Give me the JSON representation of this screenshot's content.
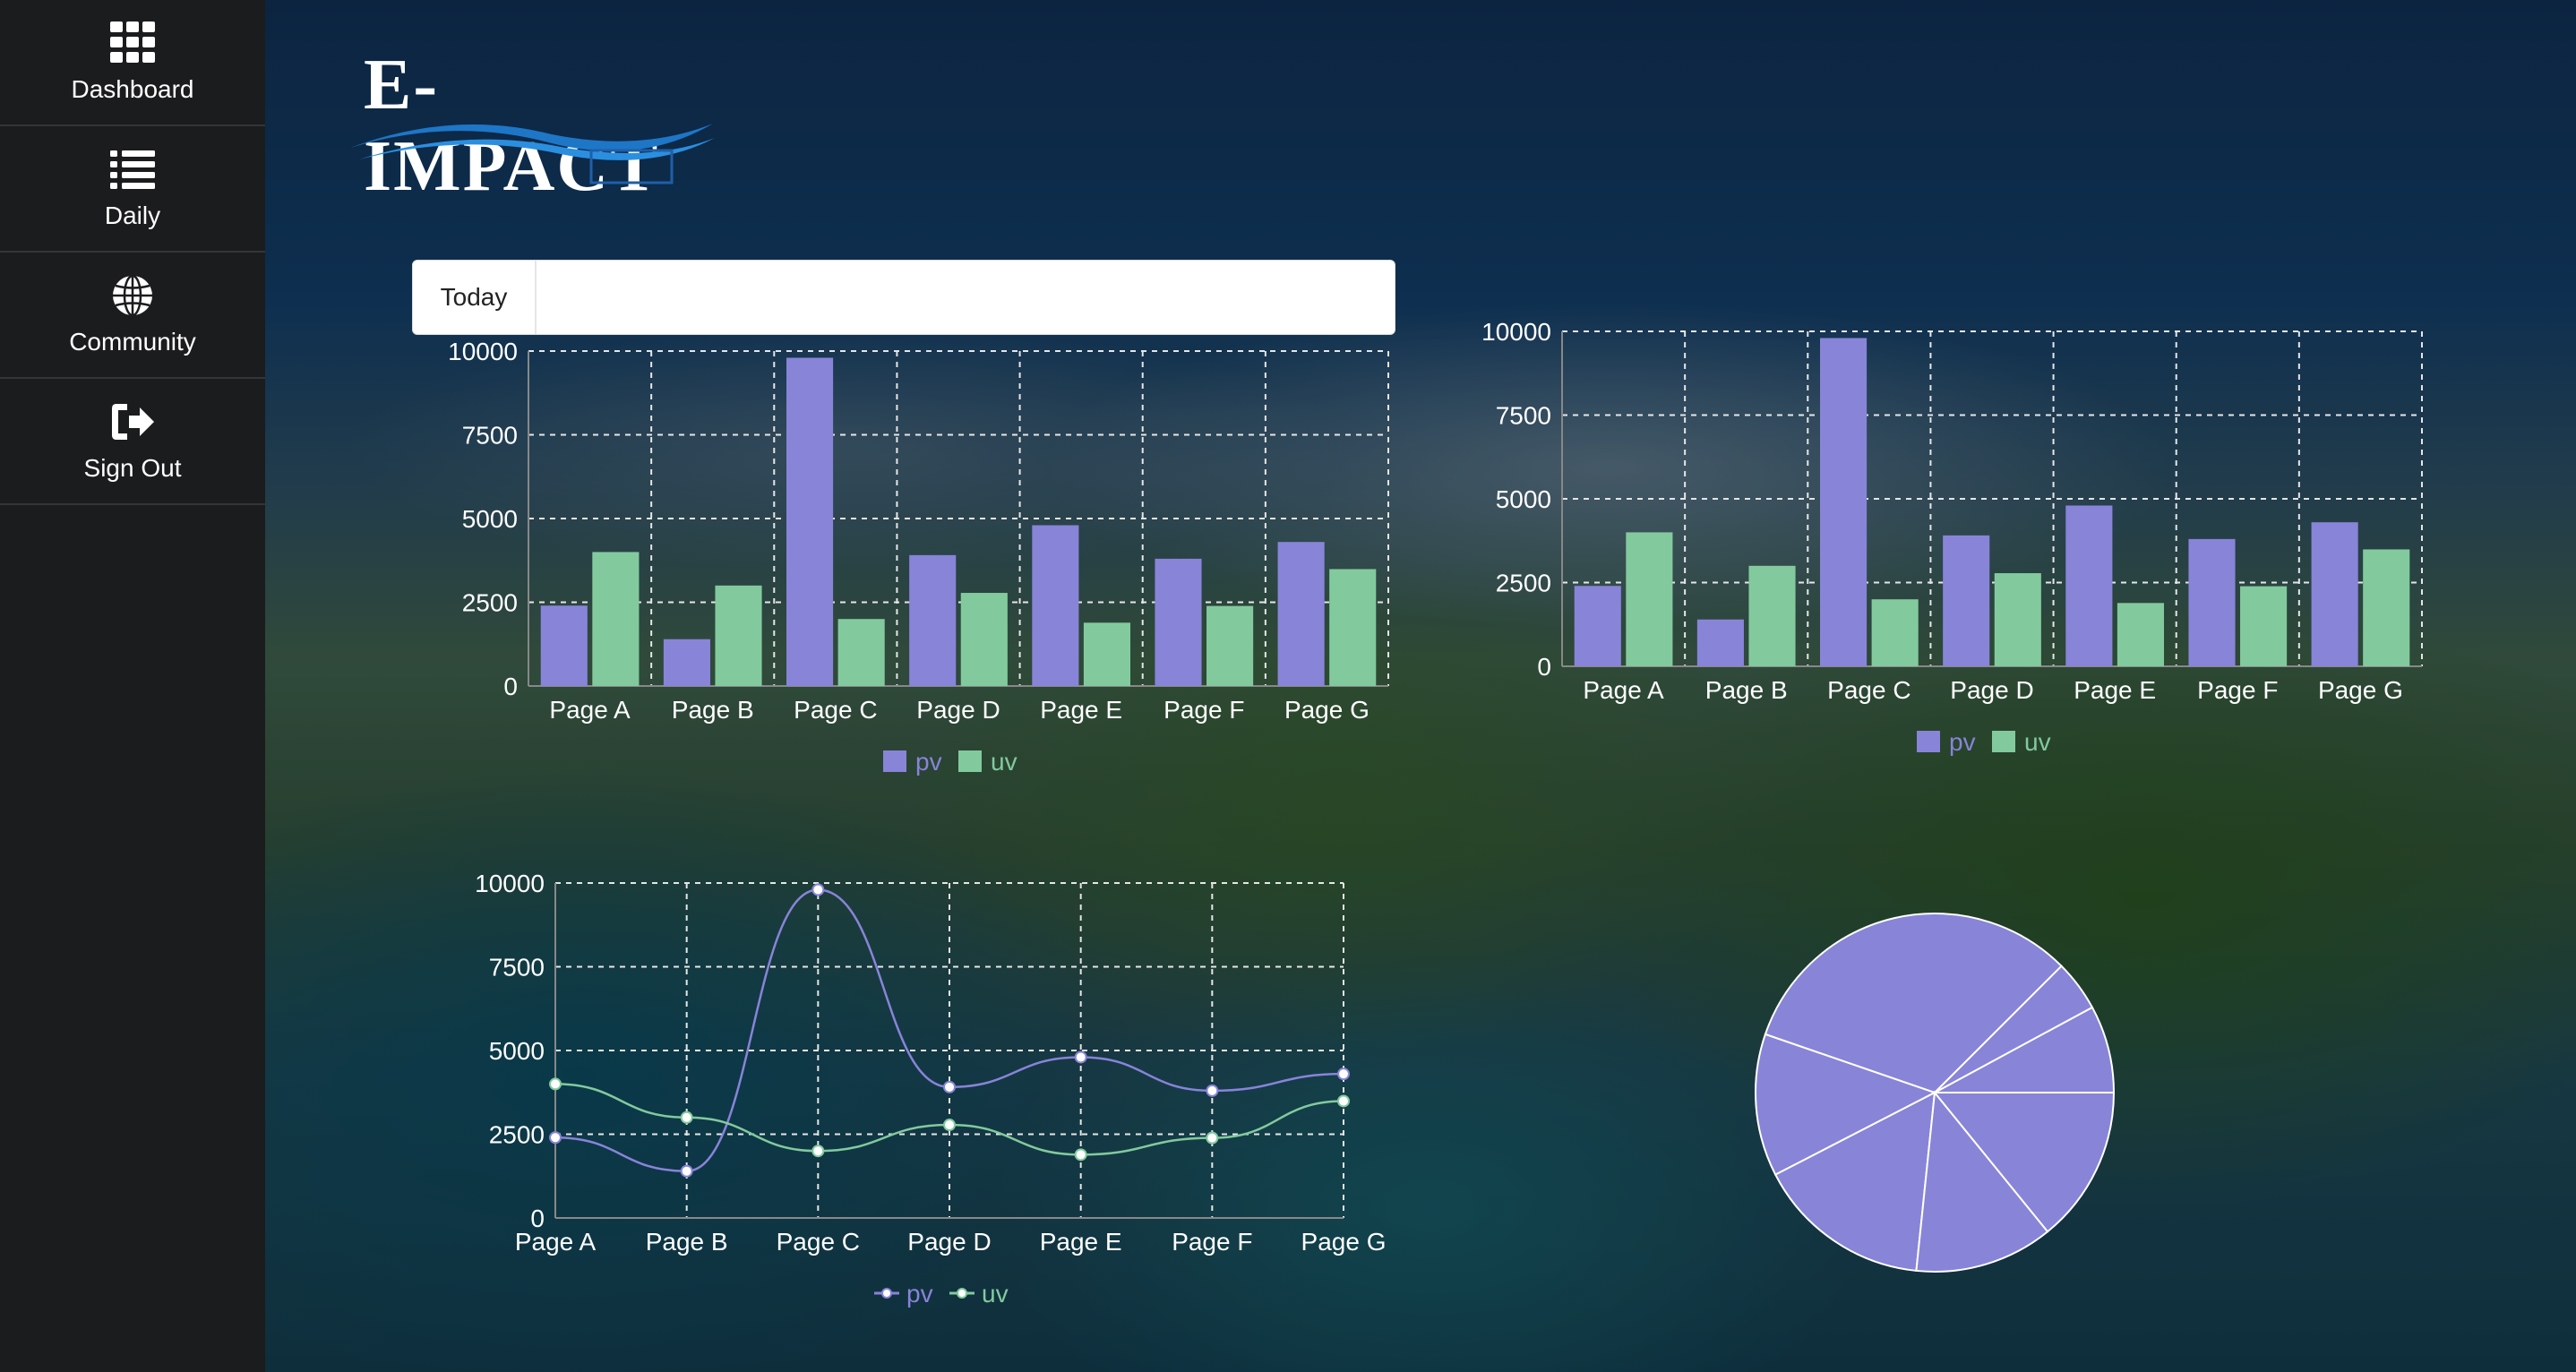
{
  "sidebar": {
    "items": [
      {
        "label": "Dashboard",
        "icon": "grid-icon"
      },
      {
        "label": "Daily",
        "icon": "list-icon"
      },
      {
        "label": "Community",
        "icon": "globe-icon"
      },
      {
        "label": "Sign Out",
        "icon": "sign-out-icon"
      }
    ]
  },
  "logo": {
    "text": "E-IMPACT"
  },
  "date_picker": {
    "label": "Today",
    "value": ""
  },
  "colors": {
    "pv": "#8884d8",
    "uv": "#82ca9d",
    "grid": "#e6e6e6"
  },
  "chart_data": [
    {
      "type": "bar",
      "categories": [
        "Page A",
        "Page B",
        "Page C",
        "Page D",
        "Page E",
        "Page F",
        "Page G"
      ],
      "series": [
        {
          "name": "pv",
          "values": [
            2400,
            1398,
            9800,
            3908,
            4800,
            3800,
            4300
          ]
        },
        {
          "name": "uv",
          "values": [
            4000,
            3000,
            2000,
            2780,
            1890,
            2390,
            3490
          ]
        }
      ],
      "yticks": [
        0,
        2500,
        5000,
        7500,
        10000
      ],
      "ylim": [
        0,
        10000
      ],
      "grid": true,
      "legend": "bottom"
    },
    {
      "type": "bar",
      "categories": [
        "Page A",
        "Page B",
        "Page C",
        "Page D",
        "Page E",
        "Page F",
        "Page G"
      ],
      "series": [
        {
          "name": "pv",
          "values": [
            2400,
            1398,
            9800,
            3908,
            4800,
            3800,
            4300
          ]
        },
        {
          "name": "uv",
          "values": [
            4000,
            3000,
            2000,
            2780,
            1890,
            2390,
            3490
          ]
        }
      ],
      "yticks": [
        0,
        2500,
        5000,
        7500,
        10000
      ],
      "ylim": [
        0,
        10000
      ],
      "grid": true,
      "legend": "bottom"
    },
    {
      "type": "line",
      "categories": [
        "Page A",
        "Page B",
        "Page C",
        "Page D",
        "Page E",
        "Page F",
        "Page G"
      ],
      "series": [
        {
          "name": "pv",
          "values": [
            2400,
            1398,
            9800,
            3908,
            4800,
            3800,
            4300
          ]
        },
        {
          "name": "uv",
          "values": [
            4000,
            3000,
            2000,
            2780,
            1890,
            2390,
            3490
          ]
        }
      ],
      "yticks": [
        0,
        2500,
        5000,
        7500,
        10000
      ],
      "ylim": [
        0,
        10000
      ],
      "grid": true,
      "legend": "bottom"
    },
    {
      "type": "pie",
      "values": [
        2400,
        1398,
        9800,
        3908,
        4800,
        3800,
        4300
      ],
      "color": "#8884d8"
    }
  ]
}
